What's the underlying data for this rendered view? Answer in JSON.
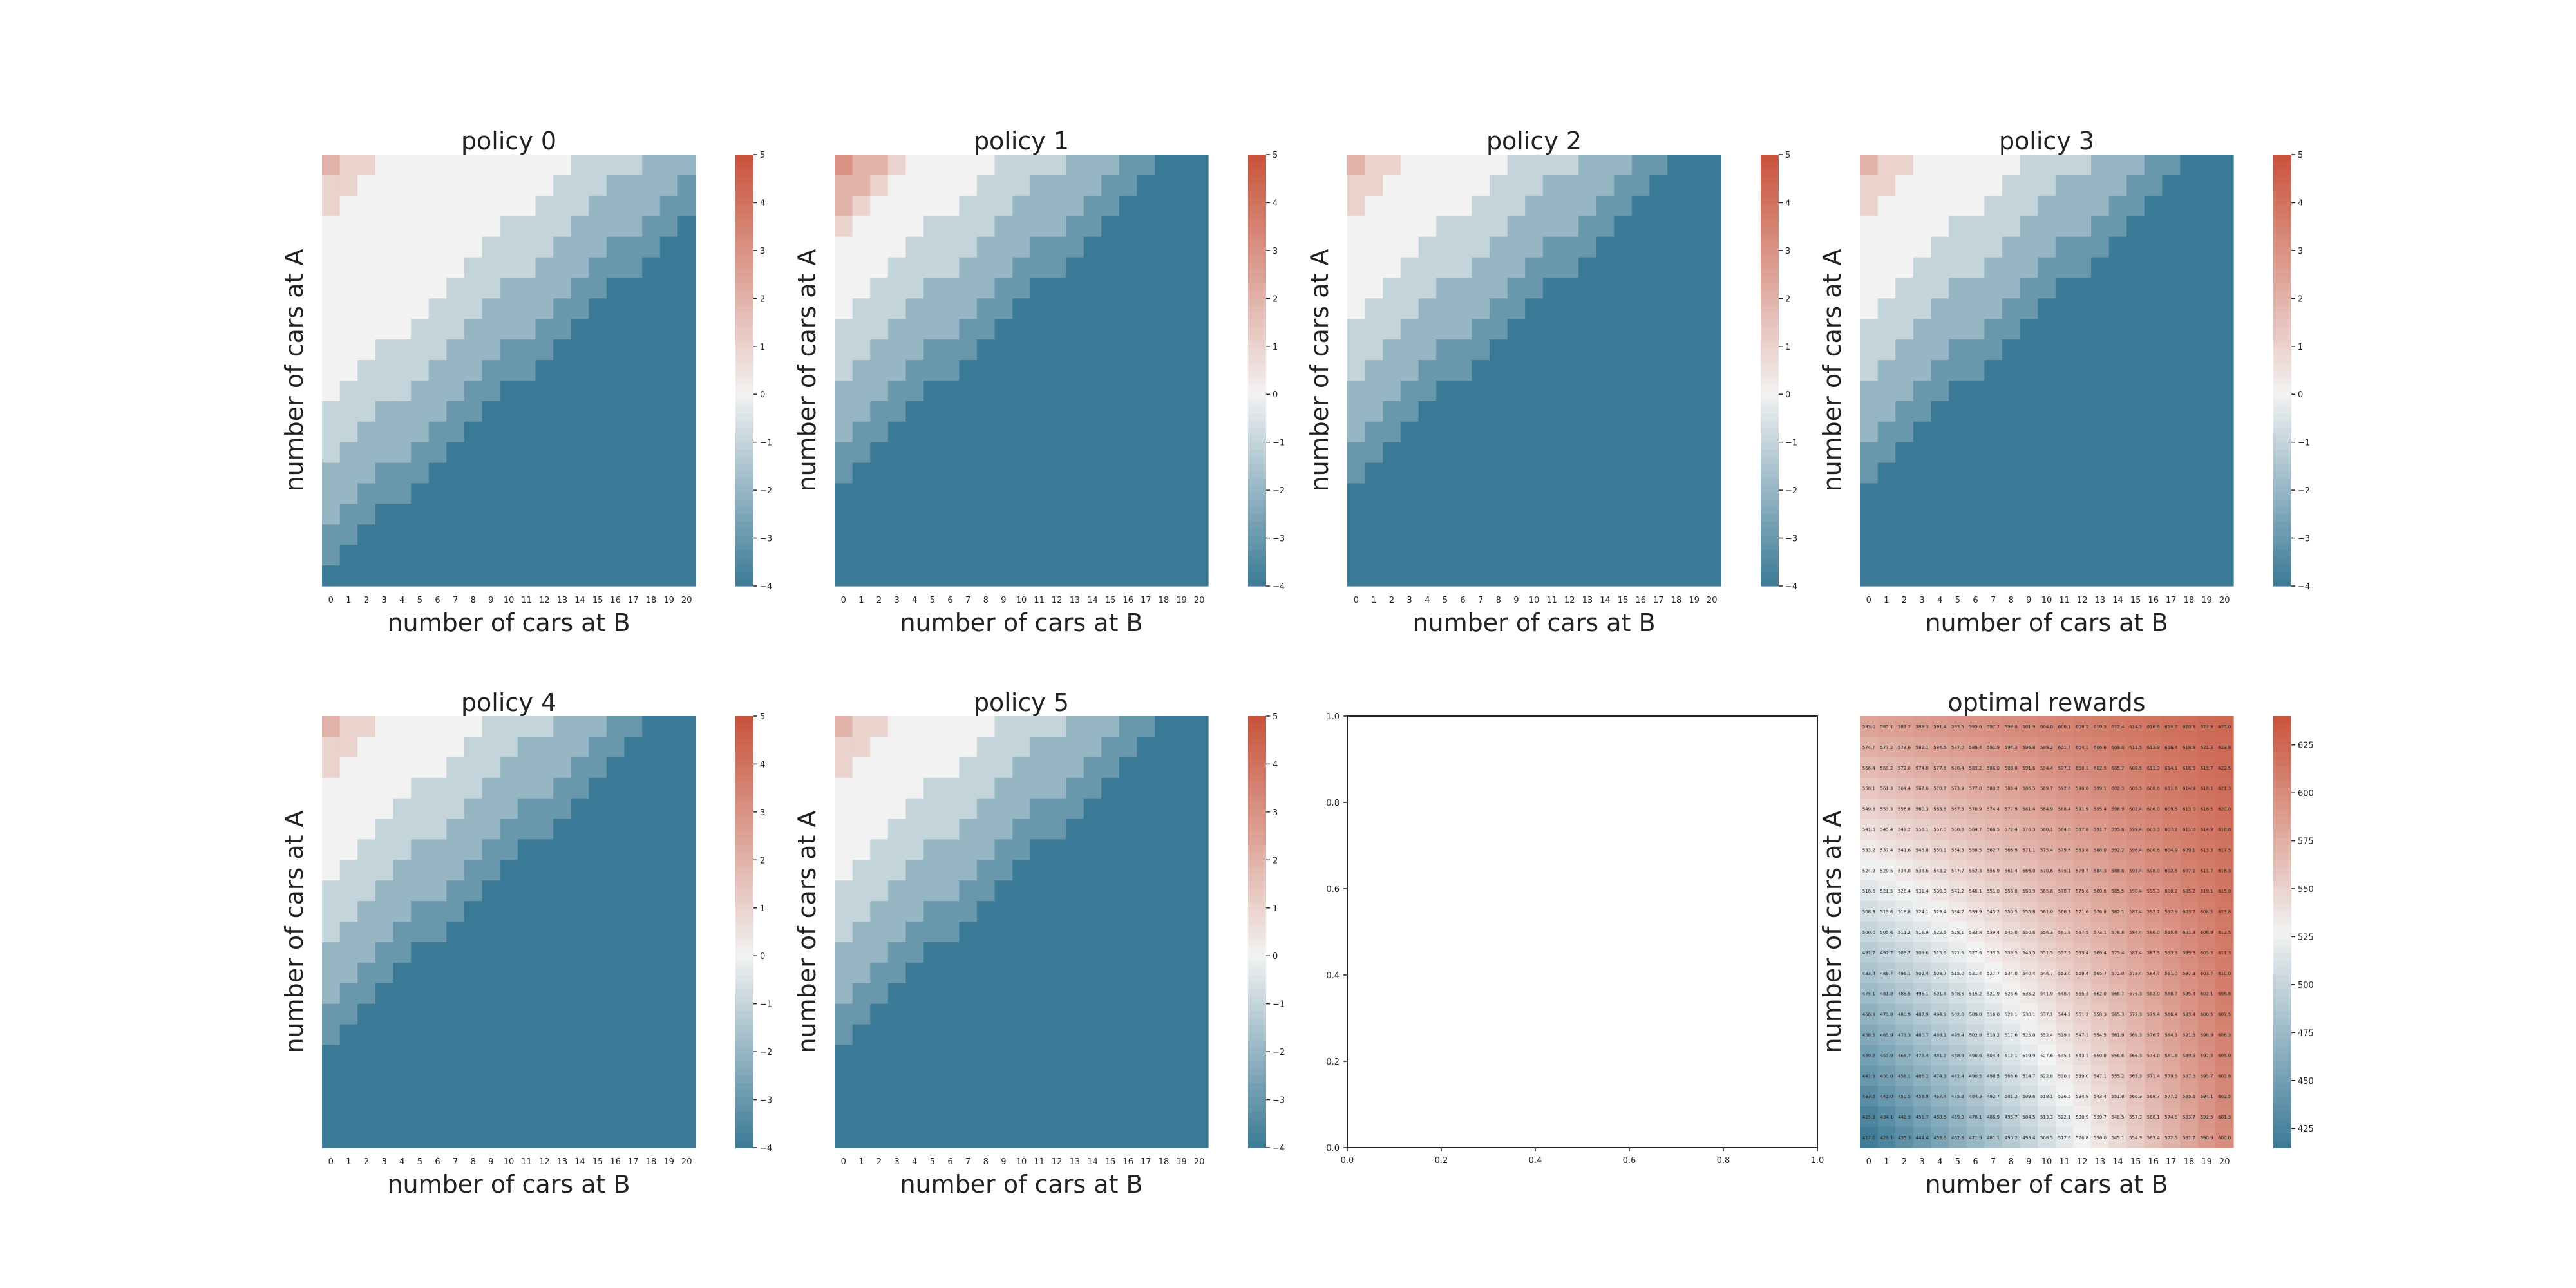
{
  "figure": {
    "layout": "2 rows x 4 columns"
  },
  "colors": {
    "min": "#3b7a96",
    "mid": "#f2f2f2",
    "max": "#c8533b",
    "frame": "#222222"
  },
  "chart_data": [
    {
      "type": "heatmap",
      "title": "policy 0",
      "xlabel": "number of cars at B",
      "ylabel": "number of cars at A",
      "x_ticks": [
        "0",
        "1",
        "2",
        "3",
        "4",
        "5",
        "6",
        "7",
        "8",
        "9",
        "10",
        "11",
        "12",
        "13",
        "14",
        "15",
        "16",
        "17",
        "18",
        "19",
        "20"
      ],
      "colorbar": {
        "range": [
          -4,
          5
        ],
        "ticks": [
          "5",
          "4",
          "3",
          "2",
          "1",
          "0",
          "−1",
          "−2",
          "−3",
          "−4"
        ]
      },
      "policy": {
        "bands": [
          19,
          16,
          13,
          8,
          6
        ],
        "boundary": 10,
        "neg": [
          11,
          9,
          6,
          3
        ]
      }
    },
    {
      "type": "heatmap",
      "title": "policy 1",
      "xlabel": "number of cars at B",
      "ylabel": "number of cars at A",
      "x_ticks": [
        "0",
        "1",
        "2",
        "3",
        "4",
        "5",
        "6",
        "7",
        "8",
        "9",
        "10",
        "11",
        "12",
        "13",
        "14",
        "15",
        "16",
        "17",
        "18",
        "19",
        "20"
      ],
      "colorbar": {
        "range": [
          -4,
          5
        ],
        "ticks": [
          "5",
          "4",
          "3",
          "2",
          "1",
          "0",
          "−1",
          "−2",
          "−3",
          "−4"
        ]
      },
      "policy": {
        "bands": [
          8,
          6,
          4,
          2,
          1
        ],
        "boundary": 5,
        "neg": [
          11,
          9,
          6,
          3
        ]
      }
    },
    {
      "type": "heatmap",
      "title": "policy 2",
      "xlabel": "number of cars at B",
      "ylabel": "number of cars at A",
      "x_ticks": [
        "0",
        "1",
        "2",
        "3",
        "4",
        "5",
        "6",
        "7",
        "8",
        "9",
        "10",
        "11",
        "12",
        "13",
        "14",
        "15",
        "16",
        "17",
        "18",
        "19",
        "20"
      ],
      "colorbar": {
        "range": [
          -4,
          5
        ],
        "ticks": [
          "5",
          "4",
          "3",
          "2",
          "1",
          "0",
          "−1",
          "−2",
          "−3",
          "−4"
        ]
      },
      "policy": {
        "bands": [
          12,
          9,
          7,
          4,
          2
        ],
        "boundary": 5,
        "neg": [
          11,
          9,
          6,
          3
        ]
      }
    },
    {
      "type": "heatmap",
      "title": "policy 3",
      "xlabel": "number of cars at B",
      "ylabel": "number of cars at A",
      "x_ticks": [
        "0",
        "1",
        "2",
        "3",
        "4",
        "5",
        "6",
        "7",
        "8",
        "9",
        "10",
        "11",
        "12",
        "13",
        "14",
        "15",
        "16",
        "17",
        "18",
        "19",
        "20"
      ],
      "colorbar": {
        "range": [
          -4,
          5
        ],
        "ticks": [
          "5",
          "4",
          "3",
          "2",
          "1",
          "0",
          "−1",
          "−2",
          "−3",
          "−4"
        ]
      },
      "policy": {
        "bands": [
          11,
          9,
          7,
          4,
          2
        ],
        "boundary": 5,
        "neg": [
          11,
          9,
          6,
          3
        ]
      }
    },
    {
      "type": "heatmap",
      "title": "policy 4",
      "xlabel": "number of cars at B",
      "ylabel": "number of cars at A",
      "x_ticks": [
        "0",
        "1",
        "2",
        "3",
        "4",
        "5",
        "6",
        "7",
        "8",
        "9",
        "10",
        "11",
        "12",
        "13",
        "14",
        "15",
        "16",
        "17",
        "18",
        "19",
        "20"
      ],
      "colorbar": {
        "range": [
          -4,
          5
        ],
        "ticks": [
          "5",
          "4",
          "3",
          "2",
          "1",
          "0",
          "−1",
          "−2",
          "−3",
          "−4"
        ]
      },
      "policy": {
        "bands": [
          12,
          10,
          7,
          4,
          2
        ],
        "boundary": 5,
        "neg": [
          11,
          9,
          6,
          3
        ]
      }
    },
    {
      "type": "heatmap",
      "title": "policy 5",
      "xlabel": "number of cars at B",
      "ylabel": "number of cars at A",
      "x_ticks": [
        "0",
        "1",
        "2",
        "3",
        "4",
        "5",
        "6",
        "7",
        "8",
        "9",
        "10",
        "11",
        "12",
        "13",
        "14",
        "15",
        "16",
        "17",
        "18",
        "19",
        "20"
      ],
      "colorbar": {
        "range": [
          -4,
          5
        ],
        "ticks": [
          "5",
          "4",
          "3",
          "2",
          "1",
          "0",
          "−1",
          "−2",
          "−3",
          "−4"
        ]
      },
      "policy": {
        "bands": [
          12,
          9,
          7,
          4,
          2
        ],
        "boundary": 5,
        "neg": [
          11,
          9,
          6,
          3
        ]
      }
    },
    {
      "type": "empty",
      "title": "",
      "x_ticks": [
        "0.0",
        "0.2",
        "0.4",
        "0.6",
        "0.8",
        "1.0"
      ],
      "y_ticks": [
        "0.0",
        "0.2",
        "0.4",
        "0.6",
        "0.8",
        "1.0"
      ]
    },
    {
      "type": "heatmap",
      "title": "optimal rewards",
      "xlabel": "number of cars at B",
      "ylabel": "number of cars at A",
      "x_ticks": [
        "0",
        "1",
        "2",
        "3",
        "4",
        "5",
        "6",
        "7",
        "8",
        "9",
        "10",
        "11",
        "12",
        "13",
        "14",
        "15",
        "16",
        "17",
        "18",
        "19",
        "20"
      ],
      "colorbar": {
        "range": [
          415,
          640
        ],
        "ticks": [
          "625",
          "600",
          "575",
          "550",
          "525",
          "500",
          "475",
          "450",
          "425"
        ]
      },
      "rewards": {
        "top_left": 583,
        "top_right": 625,
        "bottom_left": 417,
        "bottom_right": 600,
        "decimals": 1
      }
    }
  ]
}
